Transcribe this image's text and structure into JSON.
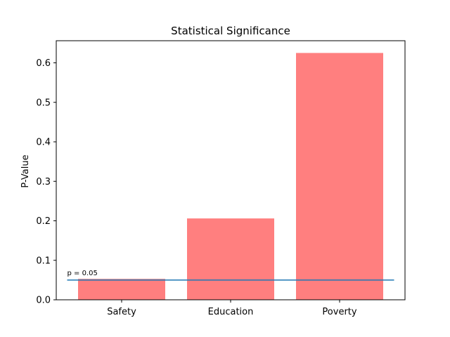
{
  "chart_data": {
    "type": "bar",
    "title": "Statistical Significance",
    "xlabel": "",
    "ylabel": "P-Value",
    "categories": [
      "Safety",
      "Education",
      "Poverty"
    ],
    "values": [
      0.053,
      0.206,
      0.625
    ],
    "ylim": [
      0,
      0.656
    ],
    "yticks": [
      0.0,
      0.1,
      0.2,
      0.3,
      0.4,
      0.5,
      0.6
    ],
    "ytick_labels": [
      "0.0",
      "0.1",
      "0.2",
      "0.3",
      "0.4",
      "0.5",
      "0.6"
    ],
    "bar_color": "#ff7f7f",
    "threshold": {
      "value": 0.05,
      "label": "p = 0.05",
      "color": "#1f77b4"
    },
    "grid": false,
    "legend": "none"
  }
}
